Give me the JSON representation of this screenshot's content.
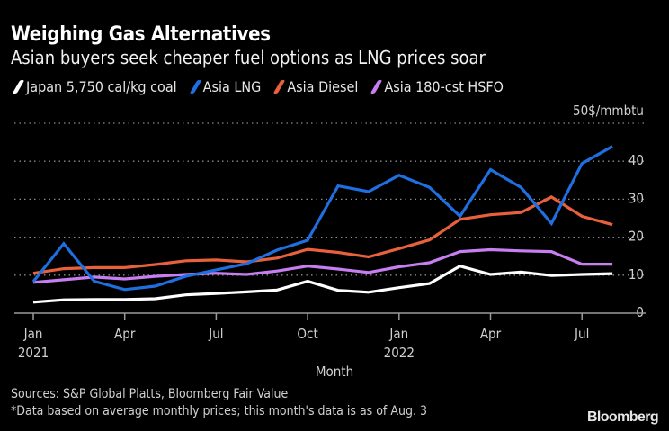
{
  "header": {
    "title": "Weighing Gas Alternatives",
    "subtitle": "Asian buyers seek cheaper fuel options as LNG prices soar"
  },
  "footer": {
    "sources": "Sources: S&P Global Platts, Bloomberg Fair Value",
    "note": "*Data based on average monthly prices; this month's data is as of Aug. 3",
    "brand": "Bloomberg"
  },
  "chart_data": {
    "type": "line",
    "title": "Weighing Gas Alternatives",
    "subtitle": "Asian buyers seek cheaper fuel options as LNG prices soar",
    "xlabel": "Month",
    "ylabel": "$/mmbtu",
    "y_unit_label": "50$/mmbtu",
    "ylim": [
      0,
      50
    ],
    "yticks": [
      0,
      10,
      20,
      30,
      40
    ],
    "grid": true,
    "legend_position": "top-left",
    "x": [
      "2021-01",
      "2021-02",
      "2021-03",
      "2021-04",
      "2021-05",
      "2021-06",
      "2021-07",
      "2021-08",
      "2021-09",
      "2021-10",
      "2021-11",
      "2021-12",
      "2022-01",
      "2022-02",
      "2022-03",
      "2022-04",
      "2022-05",
      "2022-06",
      "2022-07",
      "2022-08"
    ],
    "xticks": [
      {
        "index": 0,
        "label": "Jan",
        "sublabel": "2021"
      },
      {
        "index": 3,
        "label": "Apr",
        "sublabel": ""
      },
      {
        "index": 6,
        "label": "Jul",
        "sublabel": ""
      },
      {
        "index": 9,
        "label": "Oct",
        "sublabel": ""
      },
      {
        "index": 12,
        "label": "Jan",
        "sublabel": "2022"
      },
      {
        "index": 15,
        "label": "Apr",
        "sublabel": ""
      },
      {
        "index": 18,
        "label": "Jul",
        "sublabel": ""
      }
    ],
    "series": [
      {
        "name": "Japan 5,750 cal/kg coal",
        "color": "#ffffff",
        "values": [
          2.9,
          3.5,
          3.6,
          3.6,
          3.8,
          4.8,
          5.2,
          5.6,
          6.1,
          8.4,
          6.0,
          5.5,
          6.7,
          7.8,
          12.4,
          10.2,
          10.8,
          9.9,
          10.2,
          10.4
        ]
      },
      {
        "name": "Asia LNG",
        "color": "#1f6fe0",
        "values": [
          8.3,
          18.3,
          8.4,
          6.2,
          7.1,
          9.7,
          11.4,
          13.0,
          16.6,
          19.2,
          33.5,
          32.0,
          36.3,
          33.1,
          25.5,
          37.8,
          33.1,
          23.6,
          39.4,
          43.9
        ]
      },
      {
        "name": "Asia Diesel",
        "color": "#e8603c",
        "values": [
          10.5,
          11.7,
          12.0,
          12.0,
          12.8,
          13.8,
          14.0,
          13.5,
          14.5,
          16.8,
          16.0,
          14.8,
          17.0,
          19.3,
          24.7,
          25.9,
          26.5,
          30.6,
          25.5,
          23.3
        ]
      },
      {
        "name": "Asia 180-cst HSFO",
        "color": "#c77ef0",
        "values": [
          8.1,
          8.8,
          9.5,
          9.0,
          9.7,
          10.2,
          10.5,
          10.2,
          11.1,
          12.4,
          11.6,
          10.7,
          12.2,
          13.3,
          16.2,
          16.7,
          16.4,
          16.2,
          12.9,
          12.9
        ]
      }
    ]
  }
}
